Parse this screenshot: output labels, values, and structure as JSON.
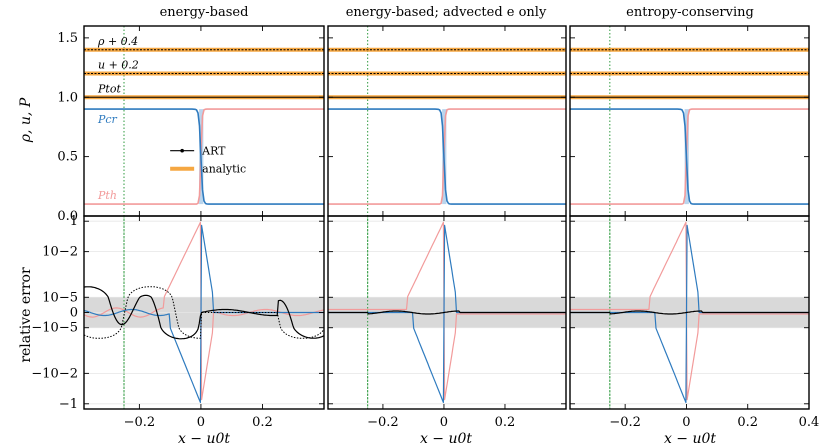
{
  "chart_data": {
    "type": "line",
    "figure": "shock-tube comparison of energy-based and entropy-conserving schemes",
    "colors": {
      "art": "#000000",
      "analytic": "#f5a742",
      "p_cr": "#2f7bbf",
      "p_th": "#f29b9b",
      "shade": "#d9d9d9",
      "vline": "#2e9a3e",
      "cr_fill": "#a9cbe8"
    },
    "columns": [
      {
        "title": "energy-based"
      },
      {
        "title": "energy-based; advected e only"
      },
      {
        "title": "entropy-conserving"
      }
    ],
    "xlabel": "x − u0t",
    "xlim": [
      -0.38,
      0.4
    ],
    "xticks": [
      "−0.2",
      "0",
      "0.2",
      "0.4"
    ],
    "xtick_values": [
      -0.2,
      0,
      0.2,
      0.4
    ],
    "vline_x": -0.25,
    "top": {
      "ylabel": "ρ, u, P",
      "ylim": [
        0.0,
        1.6
      ],
      "yticks": [
        "0.0",
        "0.5",
        "1.0",
        "1.5"
      ],
      "ytick_values": [
        0.0,
        0.5,
        1.0,
        1.5
      ],
      "lines": {
        "rho_offset": 1.4,
        "u_offset": 1.2,
        "p_tot": 1.0,
        "p_cr_left": 0.9,
        "p_cr_right": 0.1,
        "p_th_left": 0.1,
        "p_th_right": 0.9,
        "front_x": 0.0
      },
      "annotations": [
        "ρ + 0.4",
        "u + 0.2",
        "Ptot",
        "Pcr",
        "Pth"
      ],
      "legend": [
        {
          "label": "ART",
          "style": "black line with markers"
        },
        {
          "label": "analytic",
          "style": "orange thick line"
        }
      ]
    },
    "bottom": {
      "ylabel": "relative error",
      "scale": "symlog",
      "yticks": [
        "1",
        "10−2",
        "10−5",
        "0",
        "−10−5",
        "−10−2",
        "−1"
      ],
      "ytick_values": [
        1,
        0.01,
        1e-05,
        0,
        -1e-05,
        -0.01,
        -1
      ],
      "shaded_band": [
        -1e-05,
        1e-05
      ]
    }
  }
}
